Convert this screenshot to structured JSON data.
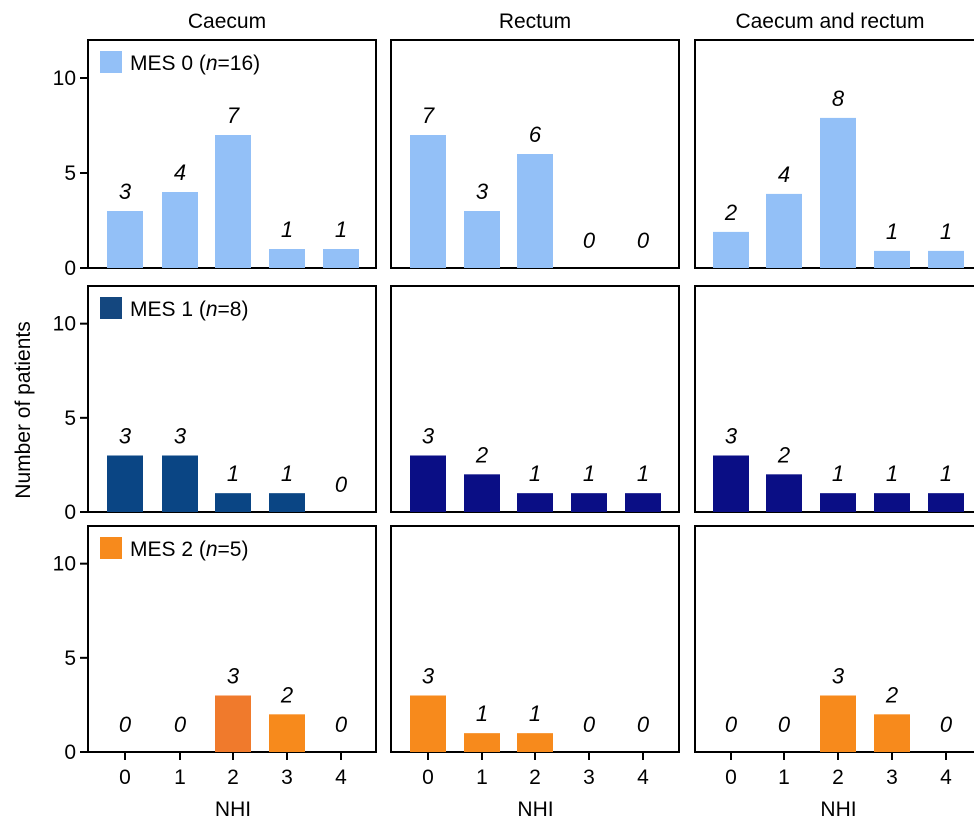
{
  "chart_data": {
    "type": "bar",
    "columns": [
      "Caecum",
      "Rectum",
      "Caecum and rectum"
    ],
    "categories": [
      "0",
      "1",
      "2",
      "3",
      "4"
    ],
    "xlabel": "NHI",
    "ylabel": "Number of patients",
    "ylim": [
      0,
      12
    ],
    "yticks": [
      "0",
      "5",
      "10"
    ],
    "rows": [
      {
        "legend": {
          "prefix": "MES 0 (",
          "n": "n",
          "suffix": "=16)"
        },
        "color": "#93c0f7",
        "panels": [
          {
            "values": [
              3,
              4,
              7,
              1,
              1
            ],
            "labels": [
              "3",
              "4",
              "7",
              "1",
              "1"
            ]
          },
          {
            "values": [
              7,
              3,
              6,
              0,
              0
            ],
            "labels": [
              "7",
              "3",
              "6",
              "0",
              "0"
            ]
          },
          {
            "values": [
              1.9,
              3.9,
              7.9,
              0.9,
              0.9
            ],
            "labels": [
              "2",
              "4",
              "8",
              "1",
              "1"
            ]
          }
        ]
      },
      {
        "legend": {
          "prefix": "MES 1 (",
          "n": "n",
          "suffix": "=8)"
        },
        "color": "#14477f",
        "panels": [
          {
            "values": [
              3,
              3,
              1,
              1,
              0
            ],
            "labels": [
              "3",
              "3",
              "1",
              "1",
              "0"
            ],
            "colors": [
              "#0a4584",
              "#0a4584",
              "#0a4584",
              "#0a4584",
              "#0a4584"
            ]
          },
          {
            "values": [
              3,
              2,
              1,
              1,
              1
            ],
            "labels": [
              "3",
              "2",
              "1",
              "1",
              "1"
            ],
            "colors": [
              "#0a0e85",
              "#0a0e85",
              "#0a0e85",
              "#0a0e85",
              "#0a0e85"
            ]
          },
          {
            "values": [
              3,
              2,
              1,
              1,
              1
            ],
            "labels": [
              "3",
              "2",
              "1",
              "1",
              "1"
            ],
            "colors": [
              "#0a0e85",
              "#0a0e85",
              "#0a0e85",
              "#0a0e85",
              "#0a0e85"
            ]
          }
        ]
      },
      {
        "legend": {
          "prefix": "MES 2 (",
          "n": "n",
          "suffix": "=5)"
        },
        "color": "#f78a1c",
        "panels": [
          {
            "values": [
              0,
              0,
              3,
              2,
              0
            ],
            "labels": [
              "0",
              "0",
              "3",
              "2",
              "0"
            ],
            "colors": [
              "#f78a1c",
              "#f78a1c",
              "#f07a2c",
              "#f78a1c",
              "#f78a1c"
            ]
          },
          {
            "values": [
              3,
              1,
              1,
              0,
              0
            ],
            "labels": [
              "3",
              "1",
              "1",
              "0",
              "0"
            ]
          },
          {
            "values": [
              0,
              0,
              3,
              2,
              0
            ],
            "labels": [
              "0",
              "0",
              "3",
              "2",
              "0"
            ]
          }
        ]
      }
    ]
  }
}
